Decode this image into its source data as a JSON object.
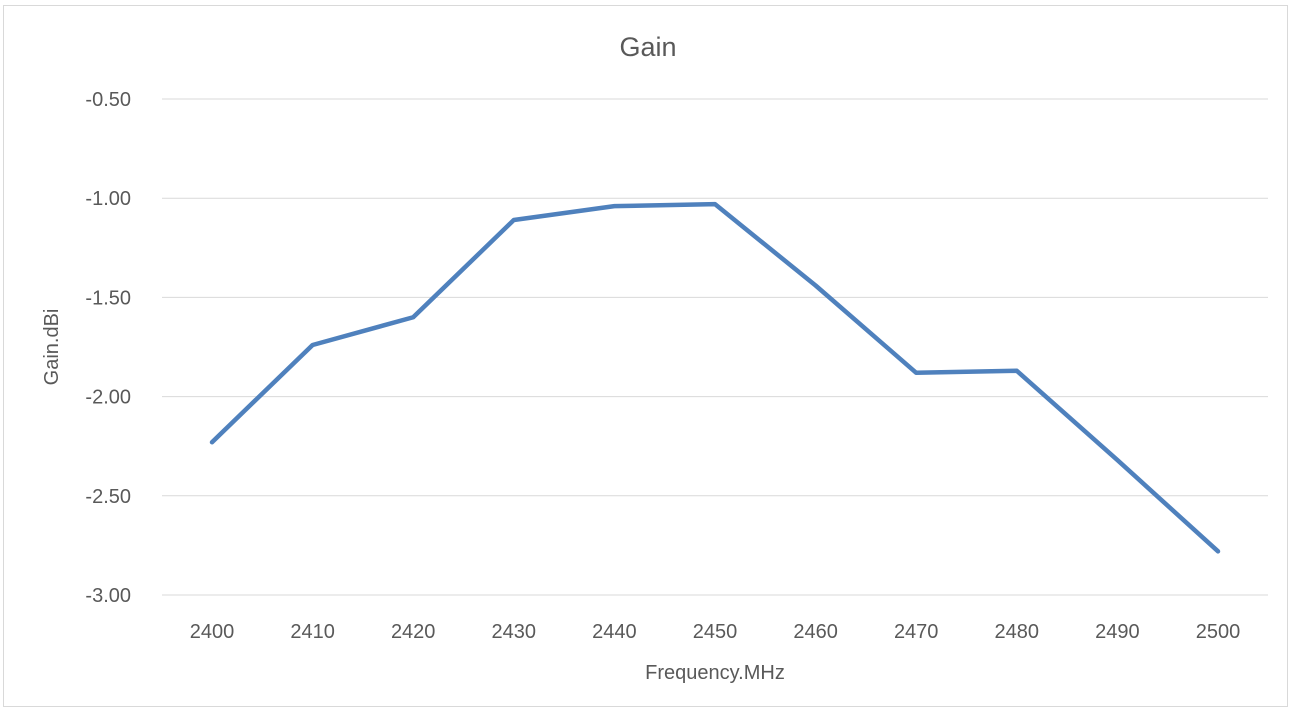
{
  "chart_data": {
    "type": "line",
    "title": "Gain",
    "xlabel": "Frequency.MHz",
    "ylabel": "Gain.dBi",
    "categories": [
      "2400",
      "2410",
      "2420",
      "2430",
      "2440",
      "2450",
      "2460",
      "2470",
      "2480",
      "2490",
      "2500"
    ],
    "series": [
      {
        "values": [
          -2.23,
          -1.74,
          -1.6,
          -1.11,
          -1.04,
          -1.03,
          -1.44,
          -1.88,
          -1.87,
          -2.32,
          -2.78
        ],
        "color": "#4f81bd"
      }
    ],
    "ylim": [
      -3.0,
      -0.5
    ],
    "yticks": [
      "-0.50",
      "-1.00",
      "-1.50",
      "-2.00",
      "-2.50",
      "-3.00"
    ],
    "ytick_values": [
      -0.5,
      -1.0,
      -1.5,
      -2.0,
      -2.5,
      -3.0
    ],
    "grid": true,
    "legend": "none"
  }
}
